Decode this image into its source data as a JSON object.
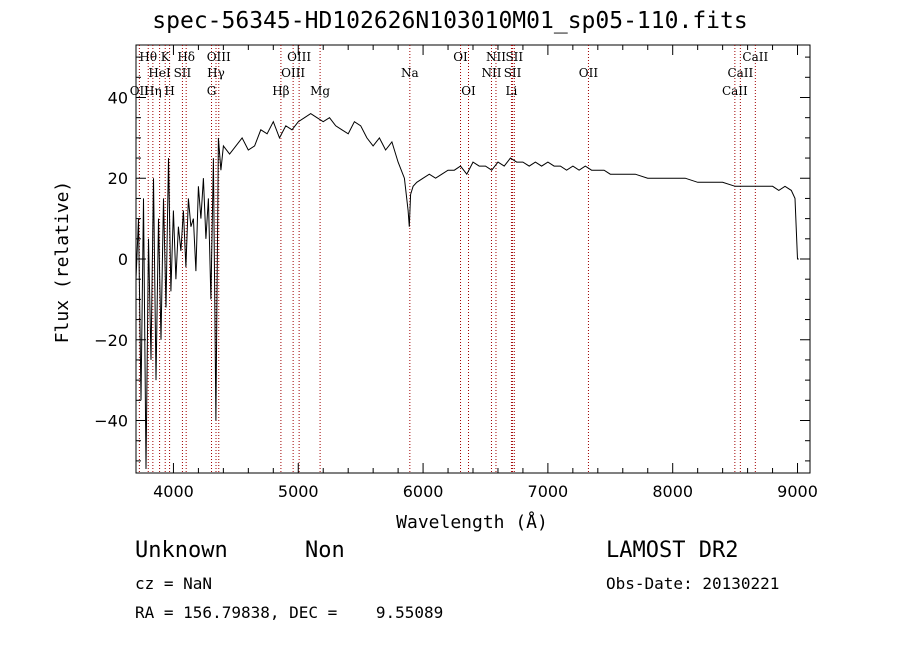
{
  "chart_data": {
    "type": "line",
    "title": "spec-56345-HD102626N103010M01_sp05-110.fits",
    "xlabel": "Wavelength (Å)",
    "ylabel": "Flux (relative)",
    "xlim": [
      3700,
      9100
    ],
    "ylim": [
      -53,
      53
    ],
    "xticks": [
      4000,
      5000,
      6000,
      7000,
      8000,
      9000
    ],
    "yticks": [
      -40,
      -20,
      0,
      20,
      40
    ],
    "series": [
      {
        "x": [
          3700,
          3720,
          3740,
          3760,
          3780,
          3800,
          3820,
          3840,
          3860,
          3880,
          3900,
          3920,
          3940,
          3960,
          3980,
          4000,
          4020,
          4040,
          4060,
          4080,
          4100,
          4120,
          4140,
          4160,
          4180,
          4200,
          4220,
          4240,
          4260,
          4280,
          4300,
          4320,
          4340,
          4360,
          4380,
          4400,
          4450,
          4500,
          4550,
          4600,
          4650,
          4700,
          4750,
          4800,
          4850,
          4900,
          4950,
          5000,
          5050,
          5100,
          5150,
          5200,
          5250,
          5300,
          5350,
          5400,
          5450,
          5500,
          5550,
          5600,
          5650,
          5700,
          5750,
          5800,
          5850,
          5880,
          5890,
          5900,
          5920,
          5950,
          6000,
          6050,
          6100,
          6150,
          6200,
          6250,
          6300,
          6350,
          6400,
          6450,
          6500,
          6550,
          6600,
          6650,
          6700,
          6750,
          6800,
          6850,
          6900,
          6950,
          7000,
          7050,
          7100,
          7150,
          7200,
          7250,
          7300,
          7350,
          7400,
          7450,
          7500,
          7600,
          7700,
          7800,
          7900,
          8000,
          8100,
          8200,
          8300,
          8400,
          8500,
          8600,
          8700,
          8800,
          8850,
          8900,
          8950,
          8980,
          9000,
          9010
        ],
        "values": [
          -5,
          10,
          -35,
          15,
          -52,
          5,
          -25,
          20,
          -30,
          10,
          -20,
          15,
          -12,
          25,
          -8,
          12,
          -5,
          8,
          2,
          12,
          -2,
          15,
          8,
          10,
          -3,
          18,
          10,
          20,
          5,
          15,
          -10,
          25,
          -40,
          30,
          22,
          28,
          26,
          28,
          30,
          27,
          28,
          32,
          31,
          34,
          30,
          33,
          32,
          34,
          35,
          36,
          35,
          34,
          35,
          33,
          32,
          31,
          34,
          33,
          30,
          28,
          30,
          27,
          29,
          24,
          20,
          12,
          8,
          16,
          18,
          19,
          20,
          21,
          20,
          21,
          22,
          22,
          23,
          21,
          24,
          23,
          23,
          22,
          24,
          23,
          25,
          24,
          24,
          23,
          24,
          23,
          24,
          23,
          23,
          22,
          23,
          22,
          23,
          22,
          22,
          22,
          21,
          21,
          21,
          20,
          20,
          20,
          20,
          19,
          19,
          19,
          18,
          18,
          18,
          18,
          17,
          18,
          17,
          15,
          0,
          0
        ]
      }
    ],
    "lines": [
      {
        "label": "OII",
        "x": 3727,
        "row": 3,
        "color": "#a00000"
      },
      {
        "label": "Hθ",
        "x": 3798,
        "row": 1,
        "color": "#a00000"
      },
      {
        "label": "Hη",
        "x": 3835,
        "row": 3,
        "color": "#a00000"
      },
      {
        "label": "HeI",
        "x": 3889,
        "row": 2,
        "color": "#a00000"
      },
      {
        "label": "K",
        "x": 3934,
        "row": 1,
        "color": "#a00000"
      },
      {
        "label": "H",
        "x": 3969,
        "row": 3,
        "color": "#a00000"
      },
      {
        "label": "SII",
        "x": 4072,
        "row": 2,
        "color": "#a00000"
      },
      {
        "label": "Hδ",
        "x": 4102,
        "row": 1,
        "color": "#a00000"
      },
      {
        "label": "G",
        "x": 4305,
        "row": 3,
        "color": "#a00000"
      },
      {
        "label": "Hγ",
        "x": 4341,
        "row": 2,
        "color": "#a00000"
      },
      {
        "label": "OIII",
        "x": 4363,
        "row": 1,
        "color": "#a00000"
      },
      {
        "label": "Hβ",
        "x": 4861,
        "row": 3,
        "color": "#a00000"
      },
      {
        "label": "OIII",
        "x": 4959,
        "row": 2,
        "color": "#a00000"
      },
      {
        "label": "OIII",
        "x": 5007,
        "row": 1,
        "color": "#a00000"
      },
      {
        "label": "Mg",
        "x": 5175,
        "row": 3,
        "color": "#a00000"
      },
      {
        "label": "Na",
        "x": 5894,
        "row": 2,
        "color": "#a00000"
      },
      {
        "label": "OI",
        "x": 6300,
        "row": 1,
        "color": "#a00000"
      },
      {
        "label": "OI",
        "x": 6364,
        "row": 3,
        "color": "#a00000"
      },
      {
        "label": "NII",
        "x": 6548,
        "row": 2,
        "color": "#a00000"
      },
      {
        "label": "NII",
        "x": 6584,
        "row": 1,
        "color": "#a00000"
      },
      {
        "label": "Li",
        "x": 6708,
        "row": 3,
        "color": "#a00000"
      },
      {
        "label": "SII",
        "x": 6717,
        "row": 2,
        "color": "#a00000"
      },
      {
        "label": "SII",
        "x": 6731,
        "row": 1,
        "color": "#a00000"
      },
      {
        "label": "OII",
        "x": 7325,
        "row": 2,
        "color": "#a00000"
      },
      {
        "label": "CaII",
        "x": 8498,
        "row": 3,
        "color": "#a00000"
      },
      {
        "label": "CaII",
        "x": 8542,
        "row": 2,
        "color": "#a00000"
      },
      {
        "label": "CaII",
        "x": 8662,
        "row": 1,
        "color": "#a00000"
      }
    ]
  },
  "info": {
    "object_class": "Unknown",
    "object_subclass": "Non",
    "survey": "LAMOST DR2",
    "cz": "cz = NaN",
    "obs_date": "Obs-Date: 20130221",
    "radec": "RA = 156.79838, DEC =    9.55089"
  }
}
